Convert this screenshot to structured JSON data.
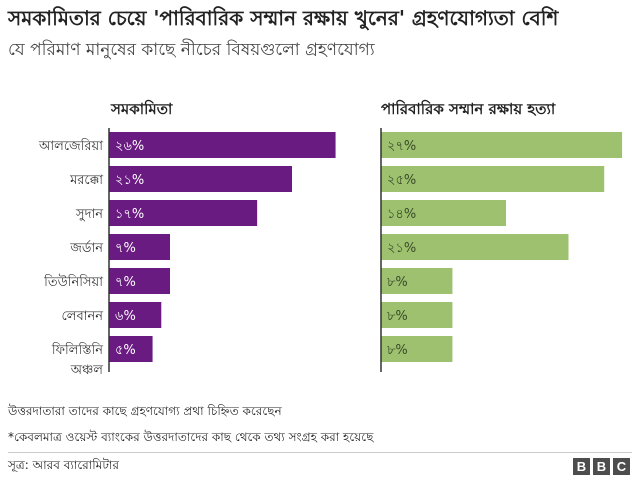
{
  "header": {
    "title": "সমকামিতার চেয়ে 'পারিবারিক সম্মান রক্ষায় খুনের' গ্রহণযোগ্যতা বেশি",
    "subtitle": "যে পরিমাণ মানুষের কাছে নীচের বিষয়গুলো গ্রহণযোগ্য"
  },
  "chart_data": {
    "type": "bar",
    "orientation": "horizontal",
    "categories": [
      "আলজেরিয়া",
      "মরক্কো",
      "সুদান",
      "জর্ডান",
      "তিউনিসিয়া",
      "লেবানন",
      "ফিলিস্তিনি অঞ্চল"
    ],
    "category_lines": [
      [
        "আলজেরিয়া"
      ],
      [
        "মরক্কো"
      ],
      [
        "সুদান"
      ],
      [
        "জর্ডান"
      ],
      [
        "তিউনিসিয়া"
      ],
      [
        "লেবানন"
      ],
      [
        "ফিলিস্তিনি",
        "অঞ্চল"
      ]
    ],
    "series": [
      {
        "name": "সমকামিতা",
        "values": [
          26,
          21,
          17,
          7,
          7,
          6,
          5
        ],
        "labels": [
          "২৬%",
          "২১%",
          "১৭%",
          "৭%",
          "৭%",
          "৬%",
          "৫%"
        ],
        "color": "#6a1b82"
      },
      {
        "name": "পারিবারিক সম্মান রক্ষায় হত্যা",
        "values": [
          27,
          25,
          14,
          21,
          8,
          8,
          8
        ],
        "labels": [
          "২৭%",
          "২৫%",
          "১৪%",
          "২১%",
          "৮%",
          "৮%",
          "৮%"
        ],
        "color": "#9dc16e"
      }
    ],
    "xlim": [
      0,
      28
    ],
    "grid": false,
    "legend": "none"
  },
  "notes": {
    "line1": "উত্তরদাতারা তাদের কাছে গ্রহণযোগ্য প্রথা চিহ্নিত করেছেন",
    "line2": "*কেবলমাত্র ওয়েস্ট ব্যাংকের উত্তরদাতাদের কাছ থেকে তথ্য সংগ্রহ করা হয়েছে"
  },
  "footer": {
    "source": "সূত্র: আরব ব্যারোমিটার",
    "logo": [
      "B",
      "B",
      "C"
    ]
  }
}
